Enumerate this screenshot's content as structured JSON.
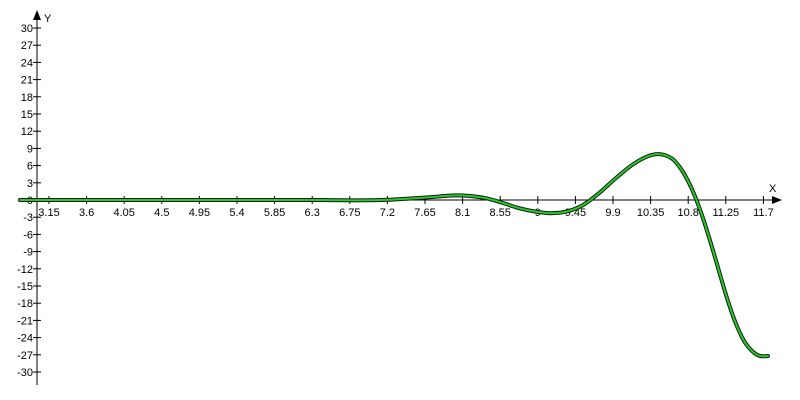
{
  "chart_data": {
    "type": "line",
    "title": "",
    "xlabel": "X",
    "ylabel": "Y",
    "xlim": [
      2.9,
      12.35
    ],
    "ylim": [
      -30,
      30
    ],
    "grid": false,
    "x_ticks": [
      "3.15",
      "3.6",
      "4.05",
      "4.5",
      "4.95",
      "5.4",
      "5.85",
      "6.3",
      "6.75",
      "7.2",
      "7.65",
      "8.1",
      "8.55",
      "9",
      "9.45",
      "9.9",
      "10.35",
      "10.8",
      "11.25",
      "11.7"
    ],
    "y_ticks": [
      "30",
      "27",
      "24",
      "21",
      "18",
      "15",
      "12",
      "9",
      "6",
      "3",
      "0",
      "-3",
      "-6",
      "-9",
      "-12",
      "-15",
      "-18",
      "-21",
      "-24",
      "-27",
      "-30"
    ],
    "series": [
      {
        "color": "#22cc22",
        "outline_color": "#1a1a1a",
        "x": [
          2.9,
          3.5,
          4.0,
          4.5,
          5.0,
          5.5,
          6.0,
          6.3,
          6.6,
          6.9,
          7.2,
          7.5,
          7.8,
          8.1,
          8.3,
          8.5,
          8.7,
          8.9,
          9.1,
          9.3,
          9.5,
          9.7,
          9.9,
          10.1,
          10.3,
          10.5,
          10.7,
          10.85,
          11.0,
          11.1,
          11.2,
          11.3,
          11.4,
          11.5,
          11.6,
          11.7,
          11.8,
          11.9,
          12.0,
          12.1,
          12.2
        ],
        "y": [
          0,
          0,
          0,
          0,
          0,
          0,
          0,
          0,
          0,
          -0.05,
          -0.05,
          0.05,
          0.3,
          0.6,
          0.8,
          0.7,
          0.3,
          -0.5,
          -1.4,
          -2.0,
          -2.3,
          -2.0,
          -0.9,
          1.2,
          3.7,
          6.0,
          7.6,
          8.0,
          7.3,
          5.8,
          3.5,
          0.4,
          -3.5,
          -8.0,
          -12.8,
          -17.5,
          -21.5,
          -24.5,
          -26.3,
          -27.2,
          -27.2
        ]
      }
    ]
  }
}
